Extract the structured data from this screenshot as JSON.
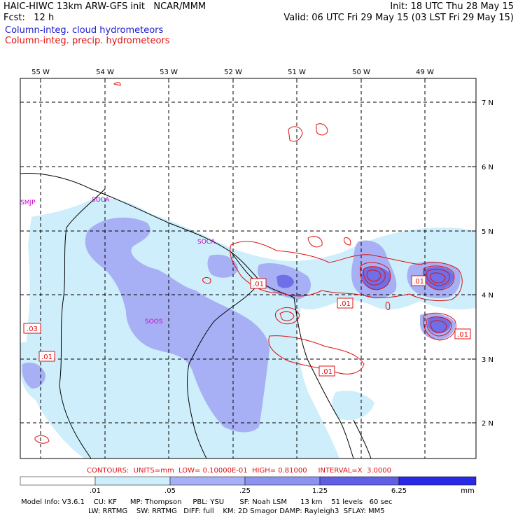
{
  "header": {
    "model_title": "HAIC-HIWC 13km ARW-GFS init   NCAR/MMM",
    "fcst": "Fcst:   12 h",
    "init": "Init: 18 UTC Thu 28 May 15",
    "valid": "Valid: 06 UTC Fri 29 May 15 (03 LST Fri 29 May 15)",
    "field_cloud": "Column-integ. cloud hydrometeors",
    "field_precip": "Column-integ. precip. hydrometeors"
  },
  "map": {
    "lon_labels": [
      "55 W",
      "54 W",
      "53 W",
      "52 W",
      "51 W",
      "50 W",
      "49 W"
    ],
    "lat_labels": [
      "7 N",
      "6 N",
      "5 N",
      "4 N",
      "3 N",
      "2 N"
    ],
    "stations": [
      "SMJP",
      "SOCA",
      "SOCA",
      "SOOS"
    ],
    "contour_labels": [
      ".01",
      ".01",
      ".01",
      ".01",
      ".01",
      ".03",
      ".01"
    ]
  },
  "contours_info": "CONTOURS:  UNITS=mm  LOW= 0.10000E-01  HIGH= 0.81000     INTERVAL=X  3.0000",
  "colorbar": {
    "ticks": [
      ".01",
      ".05",
      ".25",
      "1.25",
      "6.25"
    ],
    "unit": "mm",
    "colors": [
      "#ffffff",
      "#cdeefa",
      "#a7aff5",
      "#8b93ee",
      "#5f5fe6",
      "#2a2ae6",
      "#1010f0"
    ]
  },
  "model_info": {
    "line1": "Model Info: V3.6.1    CU: KF      MP: Thompson     PBL: YSU       SF: Noah LSM      13 km    51 levels   60 sec",
    "line2": "LW: RRTMG    SW: RRTMG   DIFF: full    KM: 2D Smagor DAMP: Rayleigh3  SFLAY: MM5"
  }
}
